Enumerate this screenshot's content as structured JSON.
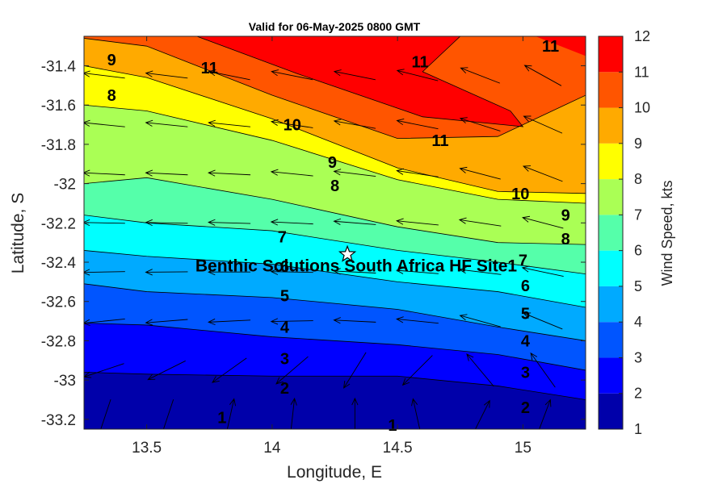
{
  "chart_data": {
    "type": "contour",
    "title": "Valid for 06-May-2025 0800 GMT",
    "xlabel": "Longitude, E",
    "ylabel": "Latitude, S",
    "xlim": [
      13.25,
      15.25
    ],
    "ylim": [
      -33.25,
      -31.25
    ],
    "x_ticks": [
      13.5,
      14,
      14.5,
      15
    ],
    "x_tick_labels": [
      "13.5",
      "14",
      "14.5",
      "15"
    ],
    "y_ticks": [
      -31.4,
      -31.6,
      -31.8,
      -32,
      -32.2,
      -32.4,
      -32.6,
      -32.8,
      -33,
      -33.2
    ],
    "y_tick_labels": [
      "-31.4",
      "-31.6",
      "-31.8",
      "-32",
      "-32.2",
      "-32.4",
      "-32.6",
      "-32.8",
      "-33",
      "-33.2"
    ],
    "colorbar": {
      "label": "Wind Speed, kts",
      "range": [
        1,
        12
      ],
      "ticks": [
        1,
        2,
        3,
        4,
        5,
        6,
        7,
        8,
        9,
        10,
        11,
        12
      ],
      "tick_labels": [
        "1",
        "2",
        "3",
        "4",
        "5",
        "6",
        "7",
        "8",
        "9",
        "10",
        "11",
        "12"
      ],
      "colors": [
        "#0000aa",
        "#0000ff",
        "#0055ff",
        "#00aaff",
        "#00ffff",
        "#55ffaa",
        "#aaff55",
        "#ffff00",
        "#ffaa00",
        "#ff5500",
        "#ff0000"
      ]
    },
    "contour_levels": [
      1,
      2,
      3,
      4,
      5,
      6,
      7,
      8,
      9,
      10,
      11
    ],
    "contour_lines": [
      {
        "level": 2,
        "points": [
          [
            13.25,
            -32.96
          ],
          [
            13.5,
            -32.97
          ],
          [
            14.0,
            -32.98
          ],
          [
            14.5,
            -32.98
          ],
          [
            14.9,
            -33.03
          ],
          [
            15.25,
            -33.1
          ]
        ]
      },
      {
        "level": 3,
        "points": [
          [
            13.25,
            -32.71
          ],
          [
            13.5,
            -32.72
          ],
          [
            14.0,
            -32.78
          ],
          [
            14.5,
            -32.82
          ],
          [
            14.9,
            -32.87
          ],
          [
            15.25,
            -32.95
          ]
        ]
      },
      {
        "level": 4,
        "points": [
          [
            13.25,
            -32.51
          ],
          [
            13.5,
            -32.55
          ],
          [
            14.0,
            -32.58
          ],
          [
            14.5,
            -32.64
          ],
          [
            14.9,
            -32.73
          ],
          [
            15.25,
            -32.8
          ]
        ]
      },
      {
        "level": 5,
        "points": [
          [
            13.25,
            -32.34
          ],
          [
            13.5,
            -32.37
          ],
          [
            14.0,
            -32.41
          ],
          [
            14.5,
            -32.5
          ],
          [
            14.9,
            -32.55
          ],
          [
            15.25,
            -32.63
          ]
        ]
      },
      {
        "level": 6,
        "points": [
          [
            13.25,
            -32.16
          ],
          [
            13.5,
            -32.2
          ],
          [
            14.0,
            -32.24
          ],
          [
            14.5,
            -32.34
          ],
          [
            14.9,
            -32.4
          ],
          [
            15.25,
            -32.46
          ]
        ]
      },
      {
        "level": 7,
        "points": [
          [
            13.25,
            -32.0
          ],
          [
            13.5,
            -31.97
          ],
          [
            14.0,
            -32.08
          ],
          [
            14.5,
            -32.22
          ],
          [
            14.9,
            -32.3
          ],
          [
            15.25,
            -32.31
          ]
        ]
      },
      {
        "level": 8,
        "points": [
          [
            13.25,
            -31.6
          ],
          [
            13.5,
            -31.63
          ],
          [
            14.0,
            -31.78
          ],
          [
            14.5,
            -31.98
          ],
          [
            14.9,
            -32.08
          ],
          [
            15.25,
            -32.1
          ]
        ]
      },
      {
        "level": 9,
        "points": [
          [
            13.25,
            -31.4
          ],
          [
            13.5,
            -31.46
          ],
          [
            14.0,
            -31.67
          ],
          [
            14.5,
            -31.92
          ],
          [
            14.9,
            -32.04
          ],
          [
            15.25,
            -32.05
          ]
        ]
      },
      {
        "level": 10,
        "points": [
          [
            13.25,
            -31.26
          ],
          [
            13.5,
            -31.3
          ],
          [
            14.0,
            -31.55
          ],
          [
            14.5,
            -31.77
          ],
          [
            14.9,
            -31.76
          ],
          [
            15.25,
            -31.55
          ]
        ]
      },
      {
        "level": 11,
        "points": [
          [
            13.7,
            -31.25
          ],
          [
            14.1,
            -31.44
          ],
          [
            14.6,
            -31.66
          ],
          [
            15.0,
            -31.71
          ],
          [
            14.95,
            -31.63
          ],
          [
            14.6,
            -31.43
          ],
          [
            14.75,
            -31.25
          ]
        ]
      }
    ],
    "contour_labels": [
      {
        "text": "11",
        "x": 13.75,
        "y": -31.41
      },
      {
        "text": "11",
        "x": 14.59,
        "y": -31.38
      },
      {
        "text": "11",
        "x": 15.11,
        "y": -31.3
      },
      {
        "text": "11",
        "x": 14.67,
        "y": -31.78
      },
      {
        "text": "10",
        "x": 14.08,
        "y": -31.7
      },
      {
        "text": "10",
        "x": 14.99,
        "y": -32.05
      },
      {
        "text": "9",
        "x": 13.36,
        "y": -31.37
      },
      {
        "text": "9",
        "x": 14.24,
        "y": -31.89
      },
      {
        "text": "9",
        "x": 15.17,
        "y": -32.16
      },
      {
        "text": "8",
        "x": 13.36,
        "y": -31.55
      },
      {
        "text": "8",
        "x": 14.25,
        "y": -32.01
      },
      {
        "text": "8",
        "x": 15.17,
        "y": -32.28
      },
      {
        "text": "7",
        "x": 14.04,
        "y": -32.27
      },
      {
        "text": "7",
        "x": 15.0,
        "y": -32.39
      },
      {
        "text": "6",
        "x": 14.05,
        "y": -32.42
      },
      {
        "text": "6",
        "x": 15.01,
        "y": -32.52
      },
      {
        "text": "5",
        "x": 14.05,
        "y": -32.57
      },
      {
        "text": "5",
        "x": 15.01,
        "y": -32.66
      },
      {
        "text": "4",
        "x": 14.05,
        "y": -32.73
      },
      {
        "text": "4",
        "x": 15.01,
        "y": -32.8
      },
      {
        "text": "3",
        "x": 14.05,
        "y": -32.89
      },
      {
        "text": "3",
        "x": 15.01,
        "y": -32.96
      },
      {
        "text": "2",
        "x": 14.05,
        "y": -33.04
      },
      {
        "text": "2",
        "x": 15.01,
        "y": -33.14
      },
      {
        "text": "1",
        "x": 13.8,
        "y": -33.19
      },
      {
        "text": "1",
        "x": 14.48,
        "y": -33.23
      }
    ],
    "site": {
      "name": "Benthic Solutions South Africa HF Site1",
      "lon": 14.3,
      "lat": -32.36,
      "marker": "star"
    },
    "wind_vectors": {
      "lons": [
        13.33,
        13.58,
        13.83,
        14.08,
        14.33,
        14.58,
        14.83,
        15.08
      ],
      "lats": [
        -31.45,
        -31.7,
        -31.95,
        -32.2,
        -32.45,
        -32.7,
        -32.95,
        -33.2
      ],
      "note": "arrows point roughly westward; direction given as [u, v] per row",
      "rows": [
        {
          "lat": -31.45,
          "u": [
            -1.0,
            -1.0,
            -1.0,
            -1.0,
            -1.0,
            -1.0,
            -0.9,
            -0.9
          ],
          "v": [
            0.12,
            0.12,
            0.2,
            0.2,
            0.2,
            0.25,
            0.35,
            0.5
          ]
        },
        {
          "lat": -31.7,
          "u": [
            -1.0,
            -1.0,
            -1.0,
            -1.0,
            -1.0,
            -1.0,
            -0.95,
            -0.9
          ],
          "v": [
            0.1,
            0.1,
            0.1,
            0.15,
            0.18,
            0.2,
            0.3,
            0.4
          ]
        },
        {
          "lat": -31.95,
          "u": [
            -1.0,
            -1.0,
            -1.0,
            -1.0,
            -1.0,
            -1.0,
            -0.95,
            -0.9
          ],
          "v": [
            0.05,
            0.05,
            0.05,
            0.1,
            0.12,
            0.15,
            0.25,
            0.35
          ]
        },
        {
          "lat": -32.2,
          "u": [
            -1.0,
            -1.0,
            -1.0,
            -1.0,
            -1.0,
            -1.0,
            -1.0,
            -0.95
          ],
          "v": [
            0.02,
            0.02,
            0.03,
            0.05,
            0.08,
            0.1,
            0.15,
            0.25
          ]
        },
        {
          "lat": -32.45,
          "u": [
            -1.0,
            -1.0,
            -1.0,
            -1.0,
            -1.0,
            -1.0,
            -1.0,
            -0.95
          ],
          "v": [
            -0.02,
            -0.01,
            0.0,
            0.02,
            0.05,
            0.08,
            0.12,
            0.2
          ]
        },
        {
          "lat": -32.7,
          "u": [
            -1.0,
            -1.0,
            -1.0,
            -1.0,
            -1.0,
            -1.0,
            -0.9,
            -0.85
          ],
          "v": [
            -0.1,
            -0.08,
            -0.05,
            -0.02,
            0.05,
            0.1,
            0.25,
            0.35
          ]
        },
        {
          "lat": -32.95,
          "u": [
            -0.9,
            -0.8,
            -0.7,
            -0.7,
            -0.5,
            -0.6,
            -0.5,
            -0.5
          ],
          "v": [
            -0.3,
            -0.4,
            -0.5,
            -0.6,
            -0.8,
            -0.6,
            0.6,
            0.7
          ]
        },
        {
          "lat": -33.2,
          "u": [
            -0.3,
            -0.3,
            0.2,
            0.1,
            0.0,
            -0.2,
            0.4,
            0.3
          ],
          "v": [
            -0.9,
            -0.9,
            0.9,
            0.9,
            1.0,
            0.9,
            0.8,
            0.8
          ]
        }
      ]
    }
  }
}
